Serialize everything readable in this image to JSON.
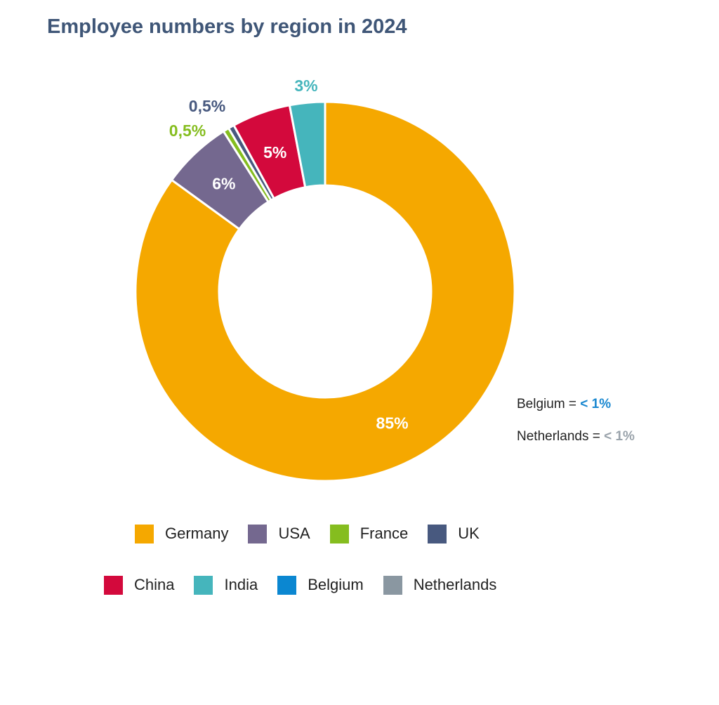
{
  "chart_data": {
    "type": "pie",
    "title": "Employee numbers by region in 2024",
    "donut": true,
    "categories": [
      "Germany",
      "USA",
      "France",
      "UK",
      "China",
      "India",
      "Belgium",
      "Netherlands"
    ],
    "values": [
      85,
      6,
      0.5,
      0.5,
      5,
      3,
      0,
      0
    ],
    "data_labels": [
      "85%",
      "6%",
      "0,5%",
      "0,5%",
      "5%",
      "3%",
      "",
      ""
    ],
    "colors": [
      "#f5a800",
      "#74688f",
      "#85bd1f",
      "#48597f",
      "#d3093c",
      "#45b5bc",
      "#0b87d1",
      "#8a97a1"
    ],
    "legend_placement": "bottom",
    "notes": [
      {
        "label": "Belgium = ",
        "value": "< 1%",
        "color": "#1a88d0"
      },
      {
        "label": "Netherlands = ",
        "value": "< 1%",
        "color": "#9aa3ab"
      }
    ]
  }
}
